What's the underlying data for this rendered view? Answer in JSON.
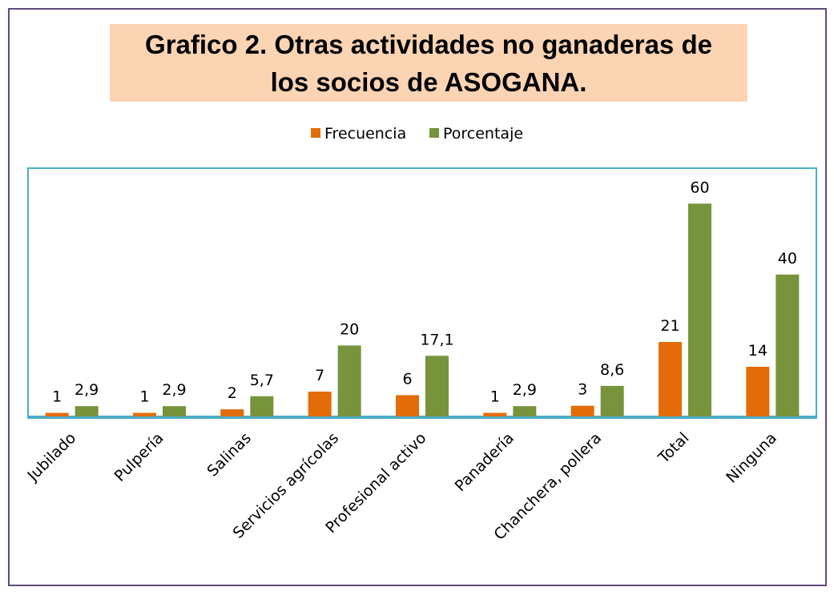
{
  "chart_data": {
    "type": "bar",
    "title": "Grafico 2. Otras actividades no ganaderas de los socios de ASOGANA.",
    "categories": [
      "Jubilado",
      "Pulpería",
      "Salinas",
      "Servicios agrícolas",
      "Profesional activo",
      "Panadería",
      "Chanchera, pollera",
      "Total",
      "Ninguna"
    ],
    "series": [
      {
        "name": "Frecuencia",
        "color": "#e36c09",
        "values": [
          1,
          1,
          2,
          7,
          6,
          1,
          3,
          21,
          14
        ],
        "value_labels": [
          "1",
          "1",
          "2",
          "7",
          "6",
          "1",
          "3",
          "21",
          "14"
        ]
      },
      {
        "name": "Porcentaje",
        "color": "#77933c",
        "values": [
          2.9,
          2.9,
          5.7,
          20,
          17.1,
          2.9,
          8.6,
          60,
          40
        ],
        "value_labels": [
          "2,9",
          "2,9",
          "5,7",
          "20",
          "17,1",
          "2,9",
          "8,6",
          "60",
          "40"
        ]
      }
    ],
    "ylim": [
      0,
      70
    ],
    "legend": "top"
  }
}
